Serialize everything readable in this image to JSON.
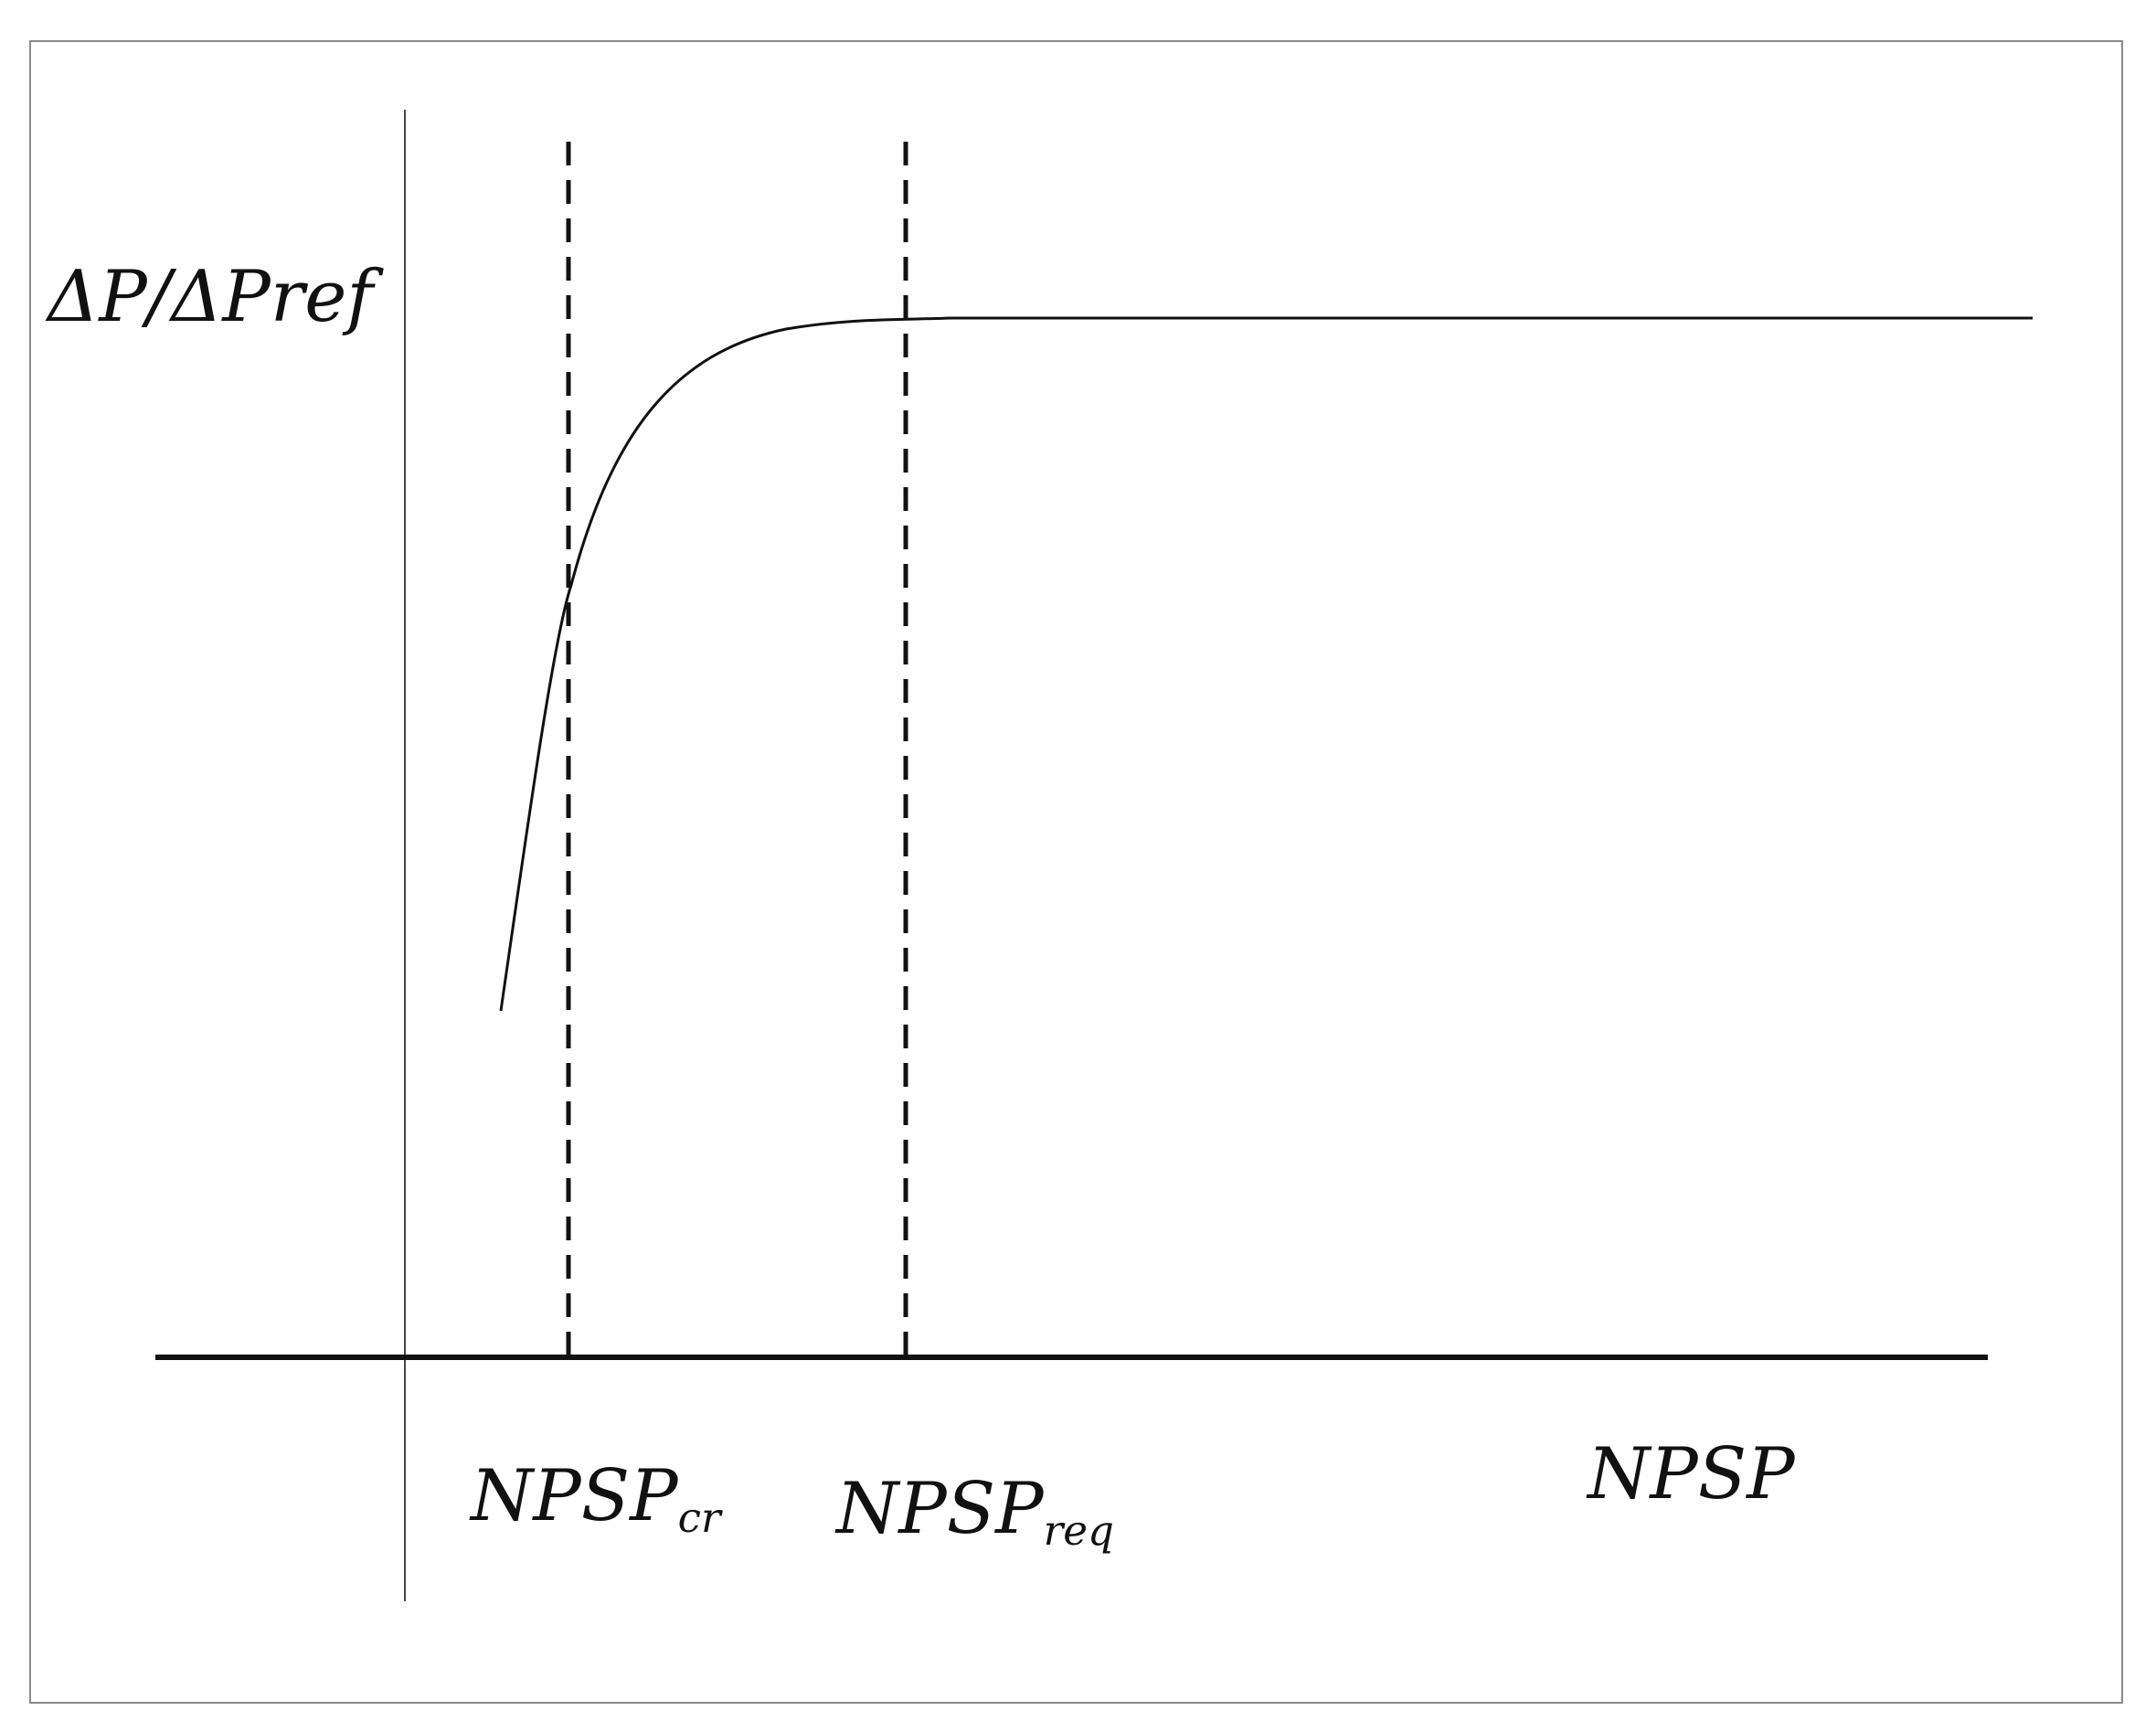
{
  "diagram": {
    "y_axis_label": "ΔP/ΔPref",
    "x_axis_label": "NPSP",
    "markers": [
      {
        "base": "NPSP",
        "subscript": "cr"
      },
      {
        "base": "NPSP",
        "subscript": "req"
      }
    ],
    "line_color": "#111111",
    "frame_color": "#8a8a8a"
  }
}
